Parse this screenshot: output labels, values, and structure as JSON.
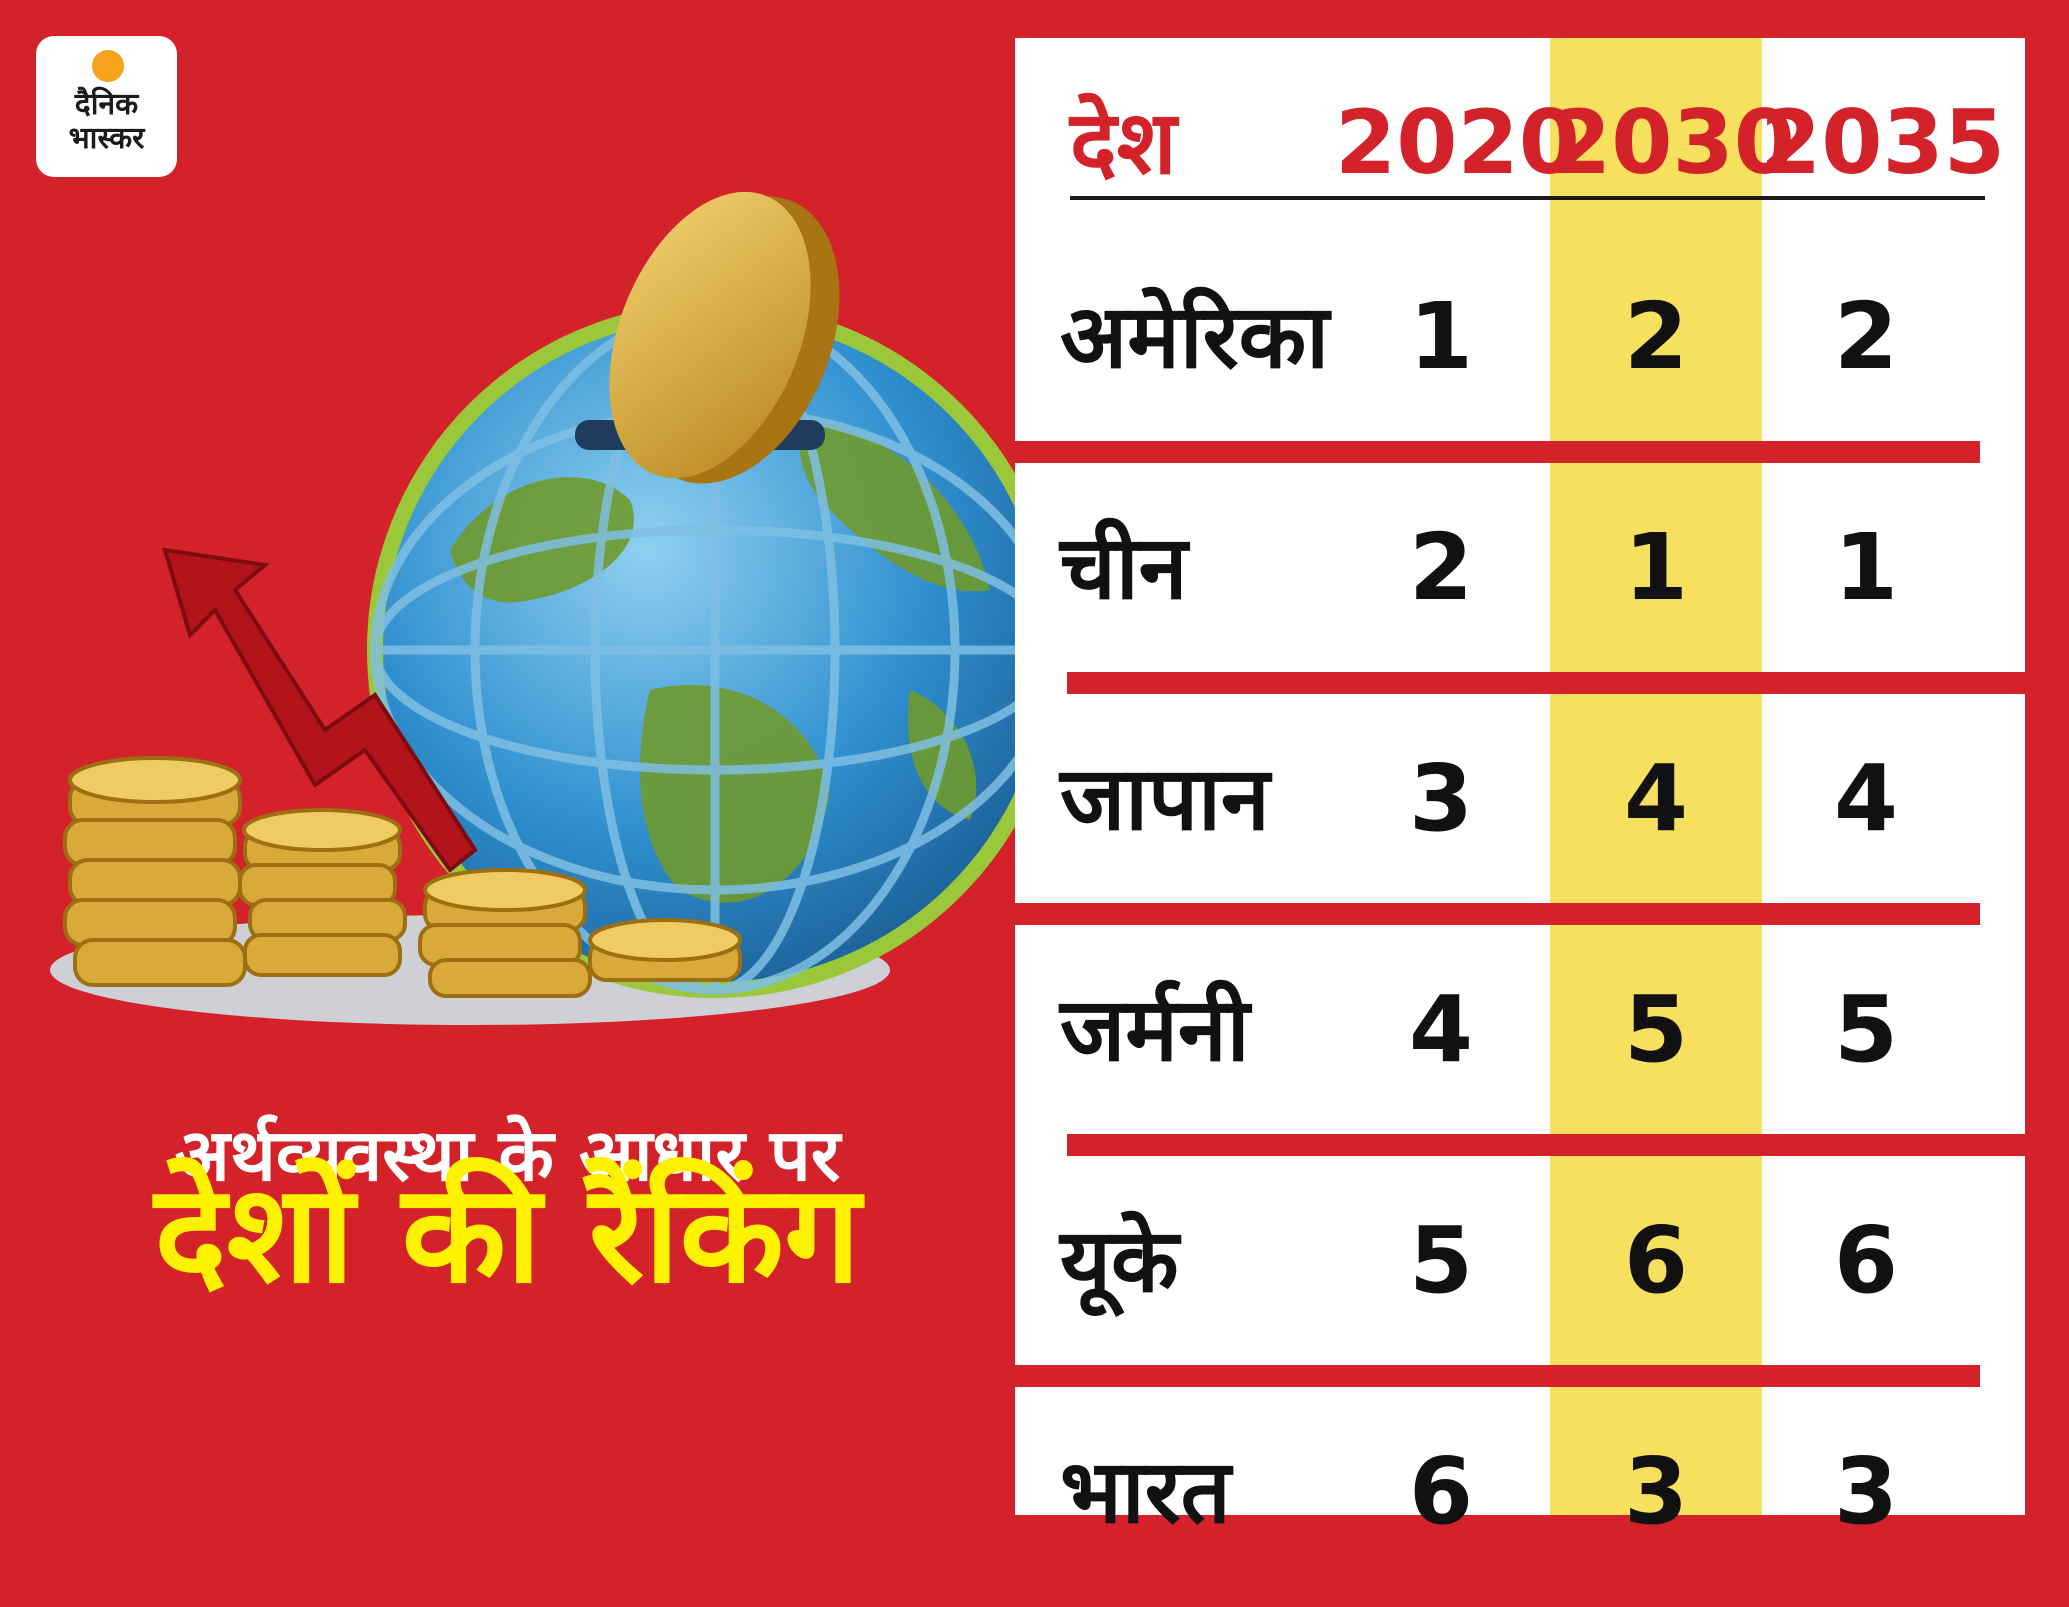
{
  "logo": {
    "line1": "दैनिक",
    "line2": "भास्कर",
    "sun_color": "#f6a21a"
  },
  "headline": {
    "line1": "अर्थव्यवस्था के आधार पर",
    "line2": "देशों की रैंकिंग"
  },
  "colors": {
    "background": "#d3222a",
    "highlight": "#f7e05e",
    "headline_highlight": "#fff200"
  },
  "chart_data": {
    "type": "table",
    "columns": [
      "देश",
      "2020",
      "2030",
      "2035"
    ],
    "highlighted_column": "2030",
    "rows": [
      {
        "country": "अमेरिका",
        "values": [
          "1",
          "2",
          "2"
        ]
      },
      {
        "country": "चीन",
        "values": [
          "2",
          "1",
          "1"
        ]
      },
      {
        "country": "जापान",
        "values": [
          "3",
          "4",
          "4"
        ]
      },
      {
        "country": "जर्मनी",
        "values": [
          "4",
          "5",
          "5"
        ]
      },
      {
        "country": "यूके",
        "values": [
          "5",
          "6",
          "6"
        ]
      },
      {
        "country": "भारत",
        "values": [
          "6",
          "3",
          "3"
        ]
      }
    ]
  }
}
